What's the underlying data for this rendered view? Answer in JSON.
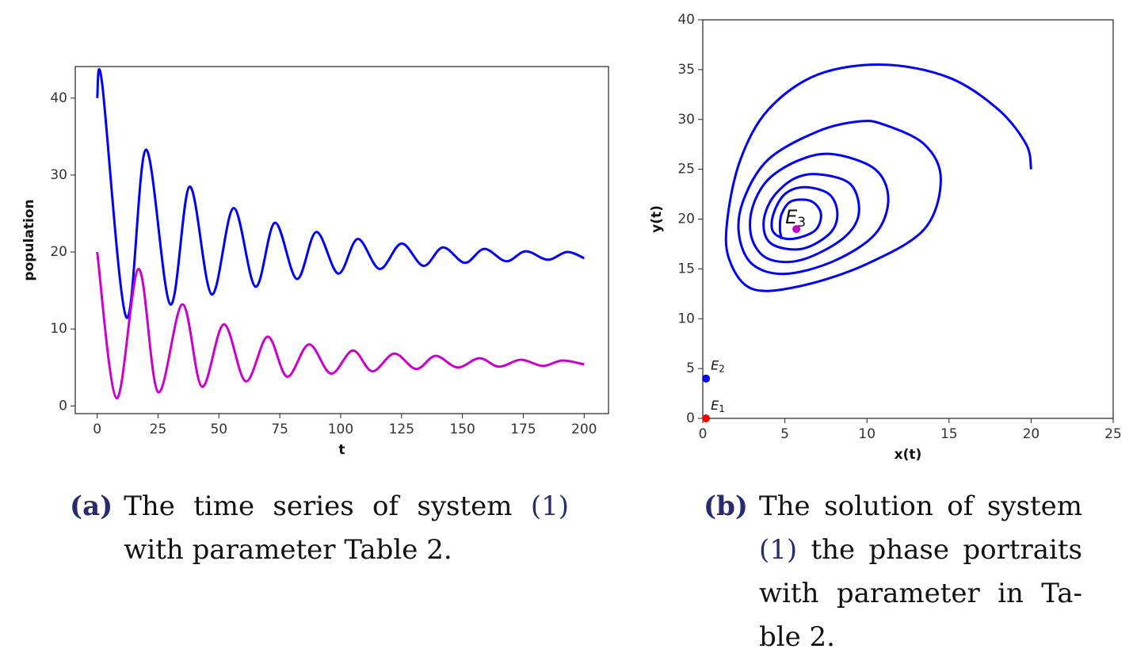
{
  "chart_data": [
    {
      "type": "line",
      "xlabel": "t",
      "ylabel": "population",
      "xlim": [
        -9,
        210
      ],
      "ylim": [
        -1,
        44.1
      ],
      "xticks": [
        0,
        25,
        50,
        75,
        100,
        125,
        150,
        175,
        200
      ],
      "yticks": [
        0,
        10,
        20,
        30,
        40
      ],
      "series": [
        {
          "color": "#0000ff",
          "x": [
            0,
            2,
            12,
            20,
            30,
            38,
            47,
            56,
            65,
            73,
            82,
            90,
            99,
            107,
            116,
            125,
            134,
            142,
            151,
            159,
            168,
            176,
            185,
            193,
            200
          ],
          "values": [
            40,
            42,
            11.5,
            33.3,
            13.2,
            28.5,
            14.5,
            25.7,
            15.5,
            23.8,
            16.5,
            22.6,
            17.2,
            21.7,
            17.8,
            21.1,
            18.2,
            20.6,
            18.6,
            20.4,
            18.8,
            20.1,
            19.0,
            20.0,
            19.2
          ]
        },
        {
          "color": "#cc00cc",
          "x": [
            0,
            8,
            17,
            25,
            35,
            43,
            52,
            61,
            70,
            78,
            87,
            96,
            105,
            113,
            122,
            131,
            139,
            148,
            157,
            165,
            174,
            183,
            191,
            200
          ],
          "values": [
            20,
            1.0,
            17.8,
            1.8,
            13.2,
            2.5,
            10.6,
            3.2,
            9.0,
            3.8,
            8.0,
            4.2,
            7.2,
            4.5,
            6.8,
            4.8,
            6.5,
            5.0,
            6.2,
            5.1,
            6.0,
            5.2,
            5.9,
            5.4
          ]
        }
      ]
    },
    {
      "type": "line",
      "xlabel": "x(t)",
      "ylabel": "y(t)",
      "xlim": [
        0,
        25
      ],
      "ylim": [
        0,
        40
      ],
      "xticks": [
        0,
        5,
        10,
        15,
        20,
        25
      ],
      "yticks": [
        0,
        5,
        10,
        15,
        20,
        25,
        30,
        35,
        40
      ],
      "series": [
        {
          "color": "#0000ff",
          "x": [
            20,
            19.7,
            18,
            15,
            11,
            7,
            4,
            2.3,
            1.5,
            1.6,
            3,
            6,
            10,
            13.5,
            14.5,
            13.5,
            11,
            9.5,
            7,
            4,
            2.5,
            2.2,
            3,
            5,
            8,
            10.5,
            11.3,
            10.5,
            8,
            6,
            4,
            3,
            3,
            4,
            6,
            8.5,
            9.5,
            9,
            7,
            5.5,
            4.2,
            3.7,
            4.2,
            6,
            7.7,
            8.2,
            7.7,
            6.2,
            5,
            4.3,
            4.3,
            5.3,
            6.8,
            7.2,
            6.6,
            5.4,
            4.8,
            4.7,
            4.8
          ],
          "values": [
            25,
            27.5,
            31,
            34.2,
            35.5,
            34.5,
            31,
            26,
            20,
            16,
            13,
            13.3,
            15.5,
            19,
            24,
            27.5,
            29.5,
            29.8,
            28.8,
            26,
            22,
            18.5,
            15.5,
            14.5,
            15.8,
            18.5,
            22,
            25,
            26.5,
            26,
            24,
            21,
            18,
            16,
            15.9,
            18,
            20.5,
            23.5,
            24.5,
            24,
            22,
            19.5,
            17.5,
            17,
            18.5,
            20.5,
            22.5,
            23.2,
            22.5,
            20.5,
            18.7,
            18,
            18.8,
            20.5,
            21.8,
            21.8,
            20.5,
            19,
            18
          ]
        }
      ],
      "points": [
        {
          "x": 5.7,
          "y": 19,
          "color": "#cc00cc",
          "label": "E",
          "subscript": "3"
        },
        {
          "x": 0.2,
          "y": 4,
          "color": "#0000ff",
          "label": "E",
          "subscript": "2"
        },
        {
          "x": 0.2,
          "y": 0,
          "color": "#ff0000",
          "label": "E",
          "subscript": "1"
        }
      ]
    }
  ],
  "captions": [
    {
      "label": "(a)",
      "text": "The time series of system",
      "ref": "(1)",
      "rest": "with parameter Table 2."
    },
    {
      "label": "(b)",
      "text": "The solution of system",
      "ref": "(1)",
      "rest": "the phase portraits with parameter in Ta-ble 2."
    }
  ]
}
